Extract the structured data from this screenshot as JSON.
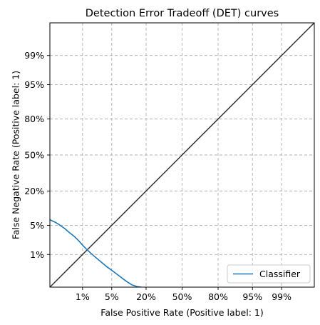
{
  "chart_data": {
    "type": "line",
    "title": "Detection Error Tradeoff (DET) curves",
    "xlabel": "False Positive Rate (Positive label: 1)",
    "ylabel": "False Negative Rate (Positive label: 1)",
    "scale": "probit",
    "xlim": [
      0.001,
      0.999
    ],
    "ylim": [
      0.001,
      0.999
    ],
    "ticks": [
      0.01,
      0.05,
      0.2,
      0.5,
      0.8,
      0.95,
      0.99
    ],
    "tick_labels": [
      "1%",
      "5%",
      "20%",
      "50%",
      "80%",
      "95%",
      "99%"
    ],
    "grid": true,
    "legend_position": "lower-right",
    "diagonal": {
      "color": "#333333"
    },
    "series": [
      {
        "name": "Classifier",
        "color": "#1f77b4",
        "x": [
          0.001,
          0.0015,
          0.002,
          0.003,
          0.004,
          0.006,
          0.008,
          0.01,
          0.013,
          0.017,
          0.022,
          0.03,
          0.04,
          0.05,
          0.065,
          0.08,
          0.1,
          0.12,
          0.145,
          0.17,
          0.19,
          0.2
        ],
        "y": [
          0.065,
          0.058,
          0.052,
          0.043,
          0.036,
          0.028,
          0.022,
          0.0175,
          0.0135,
          0.0105,
          0.0082,
          0.006,
          0.0044,
          0.0035,
          0.0026,
          0.002,
          0.0015,
          0.0012,
          0.00105,
          0.001,
          0.0009,
          0.0008
        ]
      }
    ]
  }
}
